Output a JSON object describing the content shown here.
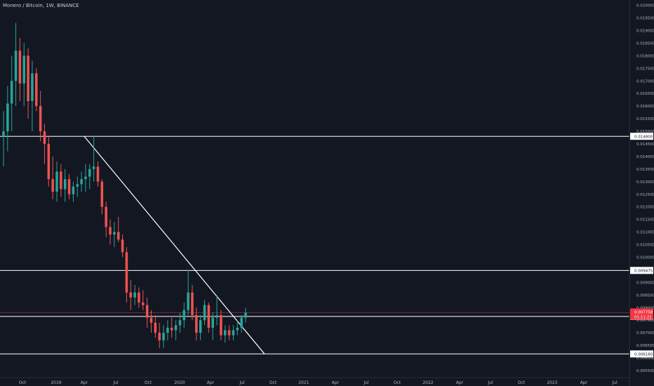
{
  "chart_data": {
    "type": "candlestick",
    "title": "Monero / Bitcoin, 1W, BINANCE",
    "colors": {
      "background": "#131722",
      "up": "#26a69a",
      "down": "#ef5350",
      "line": "#ffffff",
      "price": "#f23645",
      "text": "#b2b5be"
    },
    "y_range": [
      0.0055,
      0.0201
    ],
    "y_ticks": [
      "0.005500",
      "0.006000",
      "0.006500",
      "0.007000",
      "0.007500",
      "0.008000",
      "0.008500",
      "0.009000",
      "0.010000",
      "0.010500",
      "0.011000",
      "0.011500",
      "0.012000",
      "0.012500",
      "0.013000",
      "0.013500",
      "0.014000",
      "0.014500",
      "0.015000",
      "0.015500",
      "0.016000",
      "0.016500",
      "0.017000",
      "0.017500",
      "0.018000",
      "0.018500",
      "0.019000",
      "0.019500",
      "0.020000"
    ],
    "x_ticks": [
      "Oct",
      "2019",
      "Apr",
      "Jul",
      "Oct",
      "2020",
      "Apr",
      "Jul",
      "Oct",
      "2021",
      "Apr",
      "Jul",
      "Oct",
      "2022",
      "Apr",
      "Jul",
      "Oct",
      "2023",
      "Apr",
      "Jul"
    ],
    "horizontal_levels": [
      {
        "label": "0.014800",
        "value": 0.0148
      },
      {
        "label": "0.009475",
        "value": 0.009475
      },
      {
        "label": "0.007650",
        "value": 0.00765
      },
      {
        "label": "0.006160",
        "value": 0.00616
      }
    ],
    "price_line": {
      "value": 0.0078,
      "label": "0.007758",
      "countdown": "01:11:21"
    },
    "trendline": {
      "from": {
        "date": "Apr 2019",
        "value": 0.0148
      },
      "to": {
        "date": "Sep 2020",
        "value": 0.00616
      }
    },
    "candles": [
      [
        0.0148,
        0.0158,
        0.0136,
        0.015
      ],
      [
        0.015,
        0.0168,
        0.0142,
        0.0161
      ],
      [
        0.0161,
        0.018,
        0.015,
        0.017
      ],
      [
        0.017,
        0.0193,
        0.016,
        0.0182
      ],
      [
        0.0182,
        0.0187,
        0.0162,
        0.0169
      ],
      [
        0.0169,
        0.0185,
        0.016,
        0.018
      ],
      [
        0.018,
        0.0183,
        0.0155,
        0.0162
      ],
      [
        0.0162,
        0.0178,
        0.015,
        0.0173
      ],
      [
        0.0173,
        0.0175,
        0.0158,
        0.016
      ],
      [
        0.016,
        0.0166,
        0.0146,
        0.015
      ],
      [
        0.015,
        0.0153,
        0.0137,
        0.0145
      ],
      [
        0.0145,
        0.0148,
        0.0128,
        0.0131
      ],
      [
        0.0131,
        0.014,
        0.0123,
        0.0126
      ],
      [
        0.0126,
        0.0138,
        0.0122,
        0.0134
      ],
      [
        0.0134,
        0.0137,
        0.0124,
        0.0127
      ],
      [
        0.0127,
        0.0135,
        0.0122,
        0.0131
      ],
      [
        0.0131,
        0.0133,
        0.0123,
        0.0125
      ],
      [
        0.0125,
        0.013,
        0.0122,
        0.0128
      ],
      [
        0.0128,
        0.0132,
        0.0124,
        0.0129
      ],
      [
        0.0129,
        0.0134,
        0.0126,
        0.0131
      ],
      [
        0.0131,
        0.0137,
        0.0126,
        0.0132
      ],
      [
        0.0132,
        0.0137,
        0.0127,
        0.0135
      ],
      [
        0.0135,
        0.0148,
        0.013,
        0.0136
      ],
      [
        0.0136,
        0.0138,
        0.0128,
        0.013
      ],
      [
        0.013,
        0.0131,
        0.0117,
        0.012
      ],
      [
        0.012,
        0.0122,
        0.0108,
        0.0112
      ],
      [
        0.0112,
        0.0115,
        0.0105,
        0.0109
      ],
      [
        0.0109,
        0.0114,
        0.0104,
        0.011
      ],
      [
        0.011,
        0.0116,
        0.0106,
        0.0107
      ],
      [
        0.0107,
        0.0109,
        0.01,
        0.0102
      ],
      [
        0.0102,
        0.0104,
        0.0082,
        0.0086
      ],
      [
        0.0086,
        0.0091,
        0.0079,
        0.0084
      ],
      [
        0.0084,
        0.0089,
        0.0081,
        0.0086
      ],
      [
        0.0086,
        0.0088,
        0.008,
        0.0082
      ],
      [
        0.0082,
        0.0087,
        0.0079,
        0.0081
      ],
      [
        0.0081,
        0.0084,
        0.0072,
        0.0076
      ],
      [
        0.0076,
        0.0079,
        0.007,
        0.0074
      ],
      [
        0.0074,
        0.0077,
        0.0068,
        0.007
      ],
      [
        0.007,
        0.0074,
        0.0064,
        0.0067
      ],
      [
        0.0067,
        0.0073,
        0.0064,
        0.007
      ],
      [
        0.007,
        0.0075,
        0.0067,
        0.0072
      ],
      [
        0.0072,
        0.0076,
        0.0068,
        0.0071
      ],
      [
        0.0071,
        0.0075,
        0.0067,
        0.0073
      ],
      [
        0.0073,
        0.0078,
        0.007,
        0.0075
      ],
      [
        0.0075,
        0.0082,
        0.0072,
        0.0079
      ],
      [
        0.0079,
        0.0095,
        0.0077,
        0.0086
      ],
      [
        0.0086,
        0.0089,
        0.0075,
        0.0077
      ],
      [
        0.0077,
        0.008,
        0.0067,
        0.007
      ],
      [
        0.007,
        0.0077,
        0.0067,
        0.0075
      ],
      [
        0.0075,
        0.0083,
        0.0073,
        0.0081
      ],
      [
        0.0081,
        0.0082,
        0.007,
        0.0072
      ],
      [
        0.0072,
        0.0078,
        0.0067,
        0.0076
      ],
      [
        0.0076,
        0.0085,
        0.0073,
        0.0077
      ],
      [
        0.0077,
        0.0079,
        0.0067,
        0.0069
      ],
      [
        0.0069,
        0.0073,
        0.0066,
        0.0071
      ],
      [
        0.0071,
        0.0073,
        0.0067,
        0.0069
      ],
      [
        0.0069,
        0.0073,
        0.0067,
        0.0071
      ],
      [
        0.0071,
        0.0075,
        0.0069,
        0.0072
      ],
      [
        0.0072,
        0.0077,
        0.007,
        0.0076
      ],
      [
        0.0076,
        0.008,
        0.0074,
        0.0078
      ]
    ]
  }
}
